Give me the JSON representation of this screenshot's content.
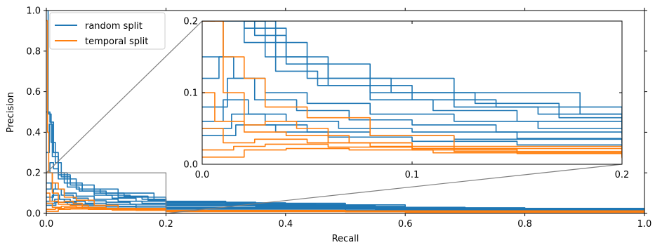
{
  "chart_data": {
    "type": "line",
    "xlabel": "Recall",
    "ylabel": "Precision",
    "xlim": [
      0,
      1
    ],
    "ylim": [
      0,
      1
    ],
    "xticks": [
      {
        "v": 0.0,
        "label": "0.0"
      },
      {
        "v": 0.2,
        "label": "0.2"
      },
      {
        "v": 0.4,
        "label": "0.4"
      },
      {
        "v": 0.6,
        "label": "0.6"
      },
      {
        "v": 0.8,
        "label": "0.8"
      },
      {
        "v": 1.0,
        "label": "1.0"
      }
    ],
    "yticks": [
      {
        "v": 0.0,
        "label": "0.0"
      },
      {
        "v": 0.2,
        "label": "0.2"
      },
      {
        "v": 0.4,
        "label": "0.4"
      },
      {
        "v": 0.6,
        "label": "0.6"
      },
      {
        "v": 0.8,
        "label": "0.8"
      },
      {
        "v": 1.0,
        "label": "1.0"
      }
    ],
    "grid": false,
    "legend": {
      "position": "top-left",
      "entries": [
        {
          "name": "random split",
          "color": "#1f77b4"
        },
        {
          "name": "temporal split",
          "color": "#ff7f0e"
        }
      ]
    },
    "inset": {
      "xlim": [
        0,
        0.2
      ],
      "ylim": [
        0,
        0.2
      ],
      "position": "upper-right",
      "xticks": [
        {
          "v": 0.0,
          "label": "0.0"
        },
        {
          "v": 0.1,
          "label": "0.1"
        },
        {
          "v": 0.2,
          "label": "0.2"
        }
      ],
      "yticks": [
        {
          "v": 0.0,
          "label": "0.0"
        },
        {
          "v": 0.1,
          "label": "0.1"
        },
        {
          "v": 0.2,
          "label": "0.2"
        }
      ]
    },
    "series": [
      {
        "name": "random split",
        "color": "#1f77b4",
        "curves": [
          [
            [
              0.0,
              1.0
            ],
            [
              0.003,
              0.5
            ],
            [
              0.006,
              0.45
            ],
            [
              0.012,
              0.3
            ],
            [
              0.02,
              0.2
            ],
            [
              0.03,
              0.15
            ],
            [
              0.05,
              0.12
            ],
            [
              0.08,
              0.1
            ],
            [
              0.12,
              0.08
            ],
            [
              0.16,
              0.07
            ],
            [
              0.2,
              0.06
            ],
            [
              0.3,
              0.045
            ],
            [
              0.5,
              0.03
            ],
            [
              0.7,
              0.02
            ],
            [
              1.0,
              0.005
            ]
          ],
          [
            [
              0.0,
              0.5
            ],
            [
              0.004,
              0.49
            ],
            [
              0.008,
              0.35
            ],
            [
              0.015,
              0.25
            ],
            [
              0.025,
              0.18
            ],
            [
              0.04,
              0.14
            ],
            [
              0.06,
              0.11
            ],
            [
              0.1,
              0.09
            ],
            [
              0.14,
              0.08
            ],
            [
              0.2,
              0.055
            ],
            [
              0.35,
              0.035
            ],
            [
              0.6,
              0.02
            ],
            [
              1.0,
              0.004
            ]
          ],
          [
            [
              0.0,
              0.3
            ],
            [
              0.005,
              0.44
            ],
            [
              0.01,
              0.28
            ],
            [
              0.02,
              0.2
            ],
            [
              0.035,
              0.17
            ],
            [
              0.05,
              0.14
            ],
            [
              0.08,
              0.12
            ],
            [
              0.12,
              0.1
            ],
            [
              0.18,
              0.07
            ],
            [
              0.2,
              0.052
            ],
            [
              0.4,
              0.03
            ],
            [
              0.7,
              0.015
            ],
            [
              1.0,
              0.003
            ]
          ],
          [
            [
              0.0,
              0.2
            ],
            [
              0.006,
              0.25
            ],
            [
              0.012,
              0.22
            ],
            [
              0.02,
              0.19
            ],
            [
              0.04,
              0.15
            ],
            [
              0.06,
              0.12
            ],
            [
              0.09,
              0.1
            ],
            [
              0.13,
              0.085
            ],
            [
              0.17,
              0.065
            ],
            [
              0.2,
              0.05
            ],
            [
              0.5,
              0.025
            ],
            [
              1.0,
              0.004
            ]
          ],
          [
            [
              0.0,
              0.15
            ],
            [
              0.01,
              0.2
            ],
            [
              0.02,
              0.17
            ],
            [
              0.035,
              0.13
            ],
            [
              0.055,
              0.11
            ],
            [
              0.08,
              0.09
            ],
            [
              0.11,
              0.075
            ],
            [
              0.15,
              0.06
            ],
            [
              0.2,
              0.048
            ],
            [
              0.45,
              0.028
            ],
            [
              0.8,
              0.012
            ],
            [
              1.0,
              0.003
            ]
          ],
          [
            [
              0.0,
              0.12
            ],
            [
              0.008,
              0.15
            ],
            [
              0.015,
              0.12
            ],
            [
              0.03,
              0.1
            ],
            [
              0.05,
              0.085
            ],
            [
              0.08,
              0.07
            ],
            [
              0.12,
              0.06
            ],
            [
              0.16,
              0.05
            ],
            [
              0.2,
              0.042
            ],
            [
              0.6,
              0.02
            ],
            [
              1.0,
              0.003
            ]
          ],
          [
            [
              0.0,
              0.08
            ],
            [
              0.012,
              0.12
            ],
            [
              0.025,
              0.09
            ],
            [
              0.045,
              0.075
            ],
            [
              0.07,
              0.062
            ],
            [
              0.1,
              0.055
            ],
            [
              0.14,
              0.045
            ],
            [
              0.2,
              0.038
            ],
            [
              0.55,
              0.02
            ],
            [
              1.0,
              0.002
            ]
          ],
          [
            [
              0.0,
              0.06
            ],
            [
              0.01,
              0.09
            ],
            [
              0.022,
              0.07
            ],
            [
              0.04,
              0.06
            ],
            [
              0.065,
              0.05
            ],
            [
              0.1,
              0.045
            ],
            [
              0.15,
              0.036
            ],
            [
              0.2,
              0.03
            ],
            [
              0.65,
              0.014
            ],
            [
              1.0,
              0.002
            ]
          ],
          [
            [
              0.0,
              0.05
            ],
            [
              0.014,
              0.07
            ],
            [
              0.03,
              0.055
            ],
            [
              0.05,
              0.045
            ],
            [
              0.08,
              0.04
            ],
            [
              0.12,
              0.035
            ],
            [
              0.2,
              0.025
            ],
            [
              0.5,
              0.015
            ],
            [
              1.0,
              0.002
            ]
          ],
          [
            [
              0.0,
              0.04
            ],
            [
              0.016,
              0.055
            ],
            [
              0.035,
              0.045
            ],
            [
              0.06,
              0.038
            ],
            [
              0.1,
              0.032
            ],
            [
              0.15,
              0.027
            ],
            [
              0.2,
              0.021
            ],
            [
              0.7,
              0.01
            ],
            [
              1.0,
              0.002
            ]
          ]
        ]
      },
      {
        "name": "temporal split",
        "color": "#ff7f0e",
        "curves": [
          [
            [
              0.0,
              0.95
            ],
            [
              0.002,
              0.4
            ],
            [
              0.004,
              0.2
            ],
            [
              0.01,
              0.15
            ],
            [
              0.02,
              0.12
            ],
            [
              0.03,
              0.08
            ],
            [
              0.05,
              0.065
            ],
            [
              0.08,
              0.04
            ],
            [
              0.12,
              0.025
            ],
            [
              0.2,
              0.015
            ],
            [
              0.5,
              0.008
            ],
            [
              1.0,
              0.004
            ]
          ],
          [
            [
              0.0,
              0.2
            ],
            [
              0.01,
              0.1
            ],
            [
              0.02,
              0.055
            ],
            [
              0.03,
              0.06
            ],
            [
              0.045,
              0.05
            ],
            [
              0.06,
              0.03
            ],
            [
              0.1,
              0.022
            ],
            [
              0.2,
              0.012
            ],
            [
              0.6,
              0.006
            ],
            [
              1.0,
              0.004
            ]
          ],
          [
            [
              0.0,
              0.1
            ],
            [
              0.006,
              0.06
            ],
            [
              0.02,
              0.045
            ],
            [
              0.04,
              0.04
            ],
            [
              0.07,
              0.03
            ],
            [
              0.1,
              0.022
            ],
            [
              0.15,
              0.015
            ],
            [
              0.2,
              0.01
            ],
            [
              1.0,
              0.004
            ]
          ],
          [
            [
              0.0,
              0.05
            ],
            [
              0.01,
              0.03
            ],
            [
              0.025,
              0.035
            ],
            [
              0.05,
              0.03
            ],
            [
              0.08,
              0.025
            ],
            [
              0.12,
              0.018
            ],
            [
              0.2,
              0.013
            ],
            [
              1.0,
              0.004
            ]
          ],
          [
            [
              0.0,
              0.02
            ],
            [
              0.015,
              0.025
            ],
            [
              0.03,
              0.028
            ],
            [
              0.06,
              0.024
            ],
            [
              0.1,
              0.02
            ],
            [
              0.15,
              0.016
            ],
            [
              0.2,
              0.011
            ],
            [
              1.0,
              0.004
            ]
          ],
          [
            [
              0.0,
              0.01
            ],
            [
              0.02,
              0.02
            ],
            [
              0.04,
              0.022
            ],
            [
              0.07,
              0.02
            ],
            [
              0.11,
              0.016
            ],
            [
              0.2,
              0.009
            ],
            [
              1.0,
              0.004
            ]
          ]
        ]
      }
    ]
  }
}
